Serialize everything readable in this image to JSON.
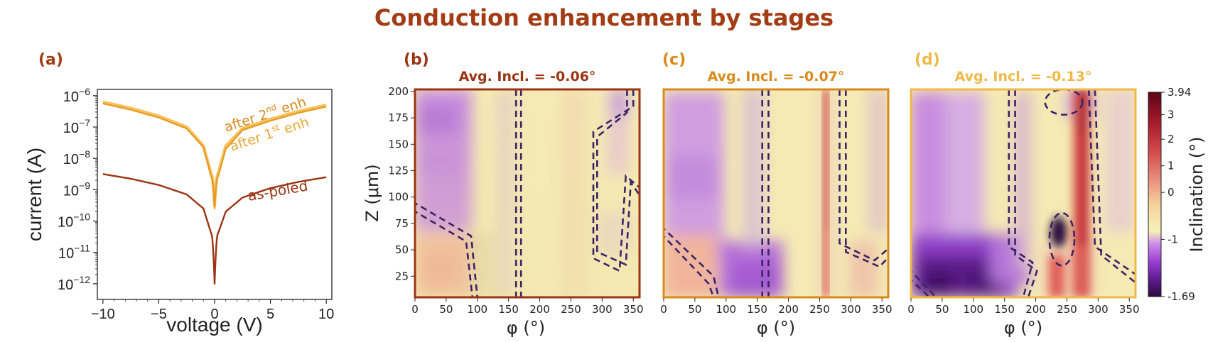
{
  "figure": {
    "title": "Conduction enhancement by stages",
    "title_color": "#a23c14"
  },
  "colors": {
    "as_poled": "#9a3412",
    "enh1": "#e69a25",
    "enh2": "#f7c25a",
    "dashed": "#3b2466"
  },
  "panel_a": {
    "label": "(a)",
    "xlabel": "voltage (V)",
    "ylabel": "current (A)",
    "x_ticks": [
      "−10",
      "−5",
      "0",
      "5",
      "10"
    ],
    "y_ticks": [
      {
        "base": "10",
        "exp": "−6"
      },
      {
        "base": "10",
        "exp": "−7"
      },
      {
        "base": "10",
        "exp": "−8"
      },
      {
        "base": "10",
        "exp": "−9"
      },
      {
        "base": "10",
        "exp": "−10"
      },
      {
        "base": "10",
        "exp": "−11"
      },
      {
        "base": "10",
        "exp": "−12"
      }
    ],
    "labels": {
      "enh2_main": "after 2",
      "enh2_sup": "nd",
      "enh2_tail": " enh",
      "enh1_main": "after 1",
      "enh1_sup": "st",
      "enh1_tail": " enh",
      "as_poled": "as-poled"
    }
  },
  "panels": [
    {
      "label": "(b)",
      "avg": "Avg. Incl. = -0.06°",
      "color": "#9a3412"
    },
    {
      "label": "(c)",
      "avg": "Avg. Incl. = -0.07°",
      "color": "#d98a1c"
    },
    {
      "label": "(d)",
      "avg": "Avg. Incl. = -0.13°",
      "color": "#f0b847"
    }
  ],
  "heatmap_axes": {
    "xlabel": "φ (°)",
    "ylabel": "Z (μm)",
    "x_ticks": [
      "0",
      "50",
      "100",
      "150",
      "200",
      "250",
      "300",
      "350"
    ],
    "y_ticks": [
      "200",
      "175",
      "150",
      "125",
      "100",
      "75",
      "50",
      "25"
    ]
  },
  "colorbar": {
    "label": "Inclination (°)",
    "ticks": [
      "3.94",
      "3",
      "2",
      "1",
      "0",
      "-1",
      "-1.69"
    ]
  },
  "chart_data": [
    {
      "type": "line",
      "title": "",
      "xlabel": "voltage (V)",
      "ylabel": "current (A)",
      "xlim": [
        -10.5,
        10.5
      ],
      "ylim_log10": [
        -12.5,
        -5.8
      ],
      "yscale": "log",
      "series": [
        {
          "name": "after 2nd enh",
          "x": [
            -10,
            -7.5,
            -5,
            -2.5,
            -1,
            -0.3,
            0,
            0.3,
            1,
            2.5,
            5,
            7.5,
            10
          ],
          "log10_y": [
            -6.2,
            -6.4,
            -6.65,
            -7.0,
            -7.6,
            -8.5,
            -9.5,
            -8.5,
            -7.6,
            -7.05,
            -6.75,
            -6.5,
            -6.3
          ]
        },
        {
          "name": "after 1st enh",
          "x": [
            -10,
            -7.5,
            -5,
            -2.5,
            -1,
            -0.3,
            0,
            0.3,
            1,
            2.5,
            5,
            7.5,
            10
          ],
          "log10_y": [
            -6.25,
            -6.45,
            -6.7,
            -7.05,
            -7.65,
            -8.6,
            -9.6,
            -8.6,
            -7.7,
            -7.1,
            -6.8,
            -6.55,
            -6.35
          ]
        },
        {
          "name": "as-poled",
          "x": [
            -10,
            -7.5,
            -5,
            -2.5,
            -1,
            -0.3,
            0,
            0.3,
            1,
            2.5,
            5,
            7.5,
            10
          ],
          "log10_y": [
            -8.5,
            -8.65,
            -8.85,
            -9.15,
            -9.6,
            -10.4,
            -12.0,
            -10.4,
            -9.7,
            -9.25,
            -8.95,
            -8.75,
            -8.6
          ]
        }
      ]
    },
    {
      "type": "heatmap",
      "title": "Avg. Incl. = -0.06°",
      "xlabel": "φ (°)",
      "ylabel": "Z (μm)",
      "xlim": [
        0,
        360
      ],
      "ylim": [
        5,
        202
      ],
      "value_range": [
        -1.69,
        3.94
      ],
      "average_inclination": -0.06,
      "dashed_regions": [
        [
          [
            -5,
            96
          ],
          [
            90,
            63
          ],
          [
            100,
            5
          ]
        ],
        [
          [
            -5,
            88
          ],
          [
            82,
            58
          ],
          [
            92,
            5
          ]
        ],
        [
          [
            162,
            202
          ],
          [
            162,
            5
          ]
        ],
        [
          [
            170,
            202
          ],
          [
            170,
            5
          ]
        ],
        [
          [
            340,
            202
          ],
          [
            340,
            180
          ],
          [
            292,
            157
          ],
          [
            292,
            48
          ],
          [
            338,
            36
          ],
          [
            346,
            114
          ],
          [
            362,
            100
          ]
        ],
        [
          [
            350,
            202
          ],
          [
            350,
            186
          ],
          [
            286,
            162
          ],
          [
            286,
            42
          ],
          [
            328,
            30
          ],
          [
            338,
            120
          ],
          [
            362,
            108
          ]
        ]
      ]
    },
    {
      "type": "heatmap",
      "title": "Avg. Incl. = -0.07°",
      "xlabel": "φ (°)",
      "ylabel": "Z (μm)",
      "xlim": [
        0,
        360
      ],
      "ylim": [
        5,
        202
      ],
      "value_range": [
        -1.69,
        3.94
      ],
      "average_inclination": -0.07,
      "dashed_regions": [
        [
          [
            -5,
            73
          ],
          [
            80,
            25
          ],
          [
            88,
            5
          ]
        ],
        [
          [
            -5,
            66
          ],
          [
            72,
            18
          ],
          [
            80,
            5
          ]
        ],
        [
          [
            158,
            202
          ],
          [
            158,
            5
          ]
        ],
        [
          [
            168,
            202
          ],
          [
            168,
            5
          ]
        ],
        [
          [
            282,
            202
          ],
          [
            282,
            56
          ],
          [
            338,
            40
          ],
          [
            362,
            52
          ]
        ],
        [
          [
            292,
            202
          ],
          [
            292,
            48
          ],
          [
            346,
            34
          ],
          [
            362,
            44
          ]
        ]
      ]
    },
    {
      "type": "heatmap",
      "title": "Avg. Incl. = -0.13°",
      "xlabel": "φ (°)",
      "ylabel": "Z (μm)",
      "xlim": [
        0,
        360
      ],
      "ylim": [
        5,
        202
      ],
      "value_range": [
        -1.69,
        3.94
      ],
      "average_inclination": -0.13,
      "dashed_regions": [
        [
          [
            -5,
            33
          ],
          [
            40,
            5
          ]
        ],
        [
          [
            -5,
            24
          ],
          [
            30,
            5
          ]
        ],
        [
          [
            157,
            202
          ],
          [
            157,
            53
          ],
          [
            195,
            38
          ],
          [
            180,
            5
          ]
        ],
        [
          [
            167,
            202
          ],
          [
            167,
            45
          ],
          [
            202,
            30
          ],
          [
            188,
            5
          ]
        ],
        [
          [
            285,
            202
          ],
          [
            295,
            53
          ],
          [
            362,
            26
          ]
        ],
        [
          [
            295,
            202
          ],
          [
            305,
            45
          ],
          [
            362,
            18
          ]
        ]
      ],
      "dashed_ellipses": [
        {
          "cx": 245,
          "cy": 190,
          "rx": 30,
          "ry": 12
        },
        {
          "cx": 242,
          "cy": 60,
          "rx": 20,
          "ry": 25
        }
      ]
    }
  ]
}
